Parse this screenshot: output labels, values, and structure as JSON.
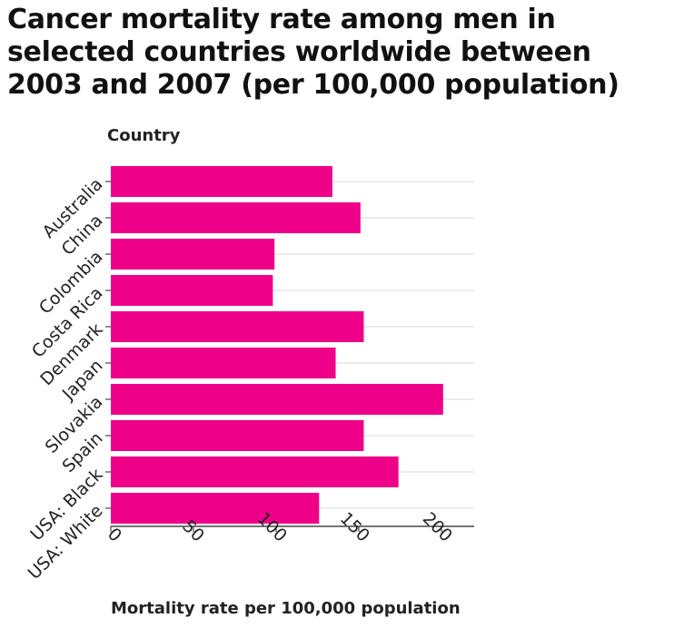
{
  "chart_data": {
    "type": "bar",
    "orientation": "horizontal",
    "title": "Cancer mortality rate among men in selected countries worldwide between 2003 and 2007 (per 100,000 population)",
    "ylabel": "Country",
    "xlabel": "Mortality rate per 100,000 population",
    "categories": [
      "Australia",
      "China",
      "Colombia",
      "Costa Rica",
      "Denmark",
      "Japan",
      "Slovakia",
      "Spain",
      "USA: Black",
      "USA: White"
    ],
    "values": [
      134,
      151,
      99,
      98,
      153,
      136,
      201,
      153,
      174,
      126
    ],
    "xlim": [
      0,
      220
    ],
    "xticks": [
      0,
      50,
      100,
      150,
      200
    ],
    "grid": "vertical-and-row-lines",
    "legend": "none",
    "bar_color": "#ee0088",
    "grid_color": "#d9d9d9"
  }
}
